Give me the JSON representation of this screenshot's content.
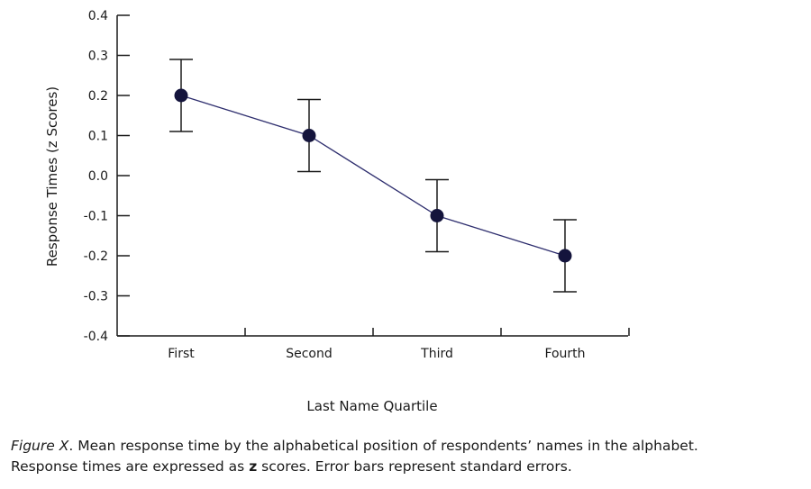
{
  "chart_data": {
    "type": "line",
    "categories": [
      "First",
      "Second",
      "Third",
      "Fourth"
    ],
    "series": [
      {
        "values": [
          0.2,
          0.1,
          -0.1,
          -0.2
        ],
        "error_upper": [
          0.29,
          0.19,
          -0.01,
          -0.11
        ],
        "error_lower": [
          0.11,
          0.01,
          -0.19,
          -0.29
        ]
      }
    ],
    "xlabel": "Last Name Quartile",
    "ylabel": "Response Times (z Scores)",
    "ylim": [
      -0.4,
      0.4
    ],
    "yticks": [
      "0.4",
      "0.3",
      "0.2",
      "0.1",
      "0.0",
      "-0.1",
      "-0.2",
      "-0.3",
      "-0.4"
    ],
    "ytick_values": [
      0.4,
      0.3,
      0.2,
      0.1,
      0.0,
      -0.1,
      -0.2,
      -0.3,
      -0.4
    ],
    "grid": false,
    "colors": {
      "line": "#2e2e6e",
      "marker": "#14143c",
      "errorbar": "#1a1a1a",
      "axis": "#1a1a1a"
    }
  },
  "caption": {
    "figure_label": "Figure X",
    "line1_rest": ". Mean response time by the alphabetical position of respondents’ names in the alphabet.",
    "line2_start": "Response times are expressed as ",
    "z_word": "z",
    "line2_end": " scores. Error bars represent standard errors."
  }
}
